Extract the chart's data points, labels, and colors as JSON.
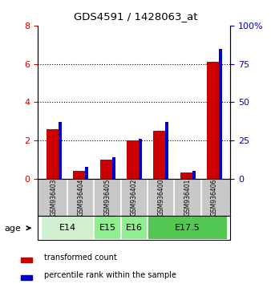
{
  "title": "GDS4591 / 1428063_at",
  "samples": [
    "GSM936403",
    "GSM936404",
    "GSM936405",
    "GSM936402",
    "GSM936400",
    "GSM936401",
    "GSM936406"
  ],
  "red_values": [
    2.6,
    0.4,
    1.0,
    2.0,
    2.5,
    0.35,
    6.1
  ],
  "blue_pct": [
    37,
    8,
    14,
    26,
    37,
    5,
    85
  ],
  "age_groups": [
    {
      "label": "E14",
      "start": 0,
      "end": 2,
      "color": "#d0f0d0"
    },
    {
      "label": "E15",
      "start": 2,
      "end": 3,
      "color": "#90ee90"
    },
    {
      "label": "E16",
      "start": 3,
      "end": 4,
      "color": "#90ee90"
    },
    {
      "label": "E17.5",
      "start": 4,
      "end": 7,
      "color": "#52c852"
    }
  ],
  "ylim_left": [
    0,
    8
  ],
  "ylim_right": [
    0,
    100
  ],
  "yticks_left": [
    0,
    2,
    4,
    6,
    8
  ],
  "yticks_right": [
    0,
    25,
    50,
    75,
    100
  ],
  "ytick_labels_right": [
    "0",
    "25",
    "50",
    "75",
    "100%"
  ],
  "red_bar_width": 0.55,
  "blue_bar_width": 0.12,
  "red_color": "#cc0000",
  "blue_color": "#0000cc",
  "bg_color": "#ffffff",
  "sample_bg_color": "#c8c8c8",
  "age_label": "age",
  "legend_red": "transformed count",
  "legend_blue": "percentile rank within the sample",
  "grid_yticks": [
    2,
    4,
    6
  ]
}
